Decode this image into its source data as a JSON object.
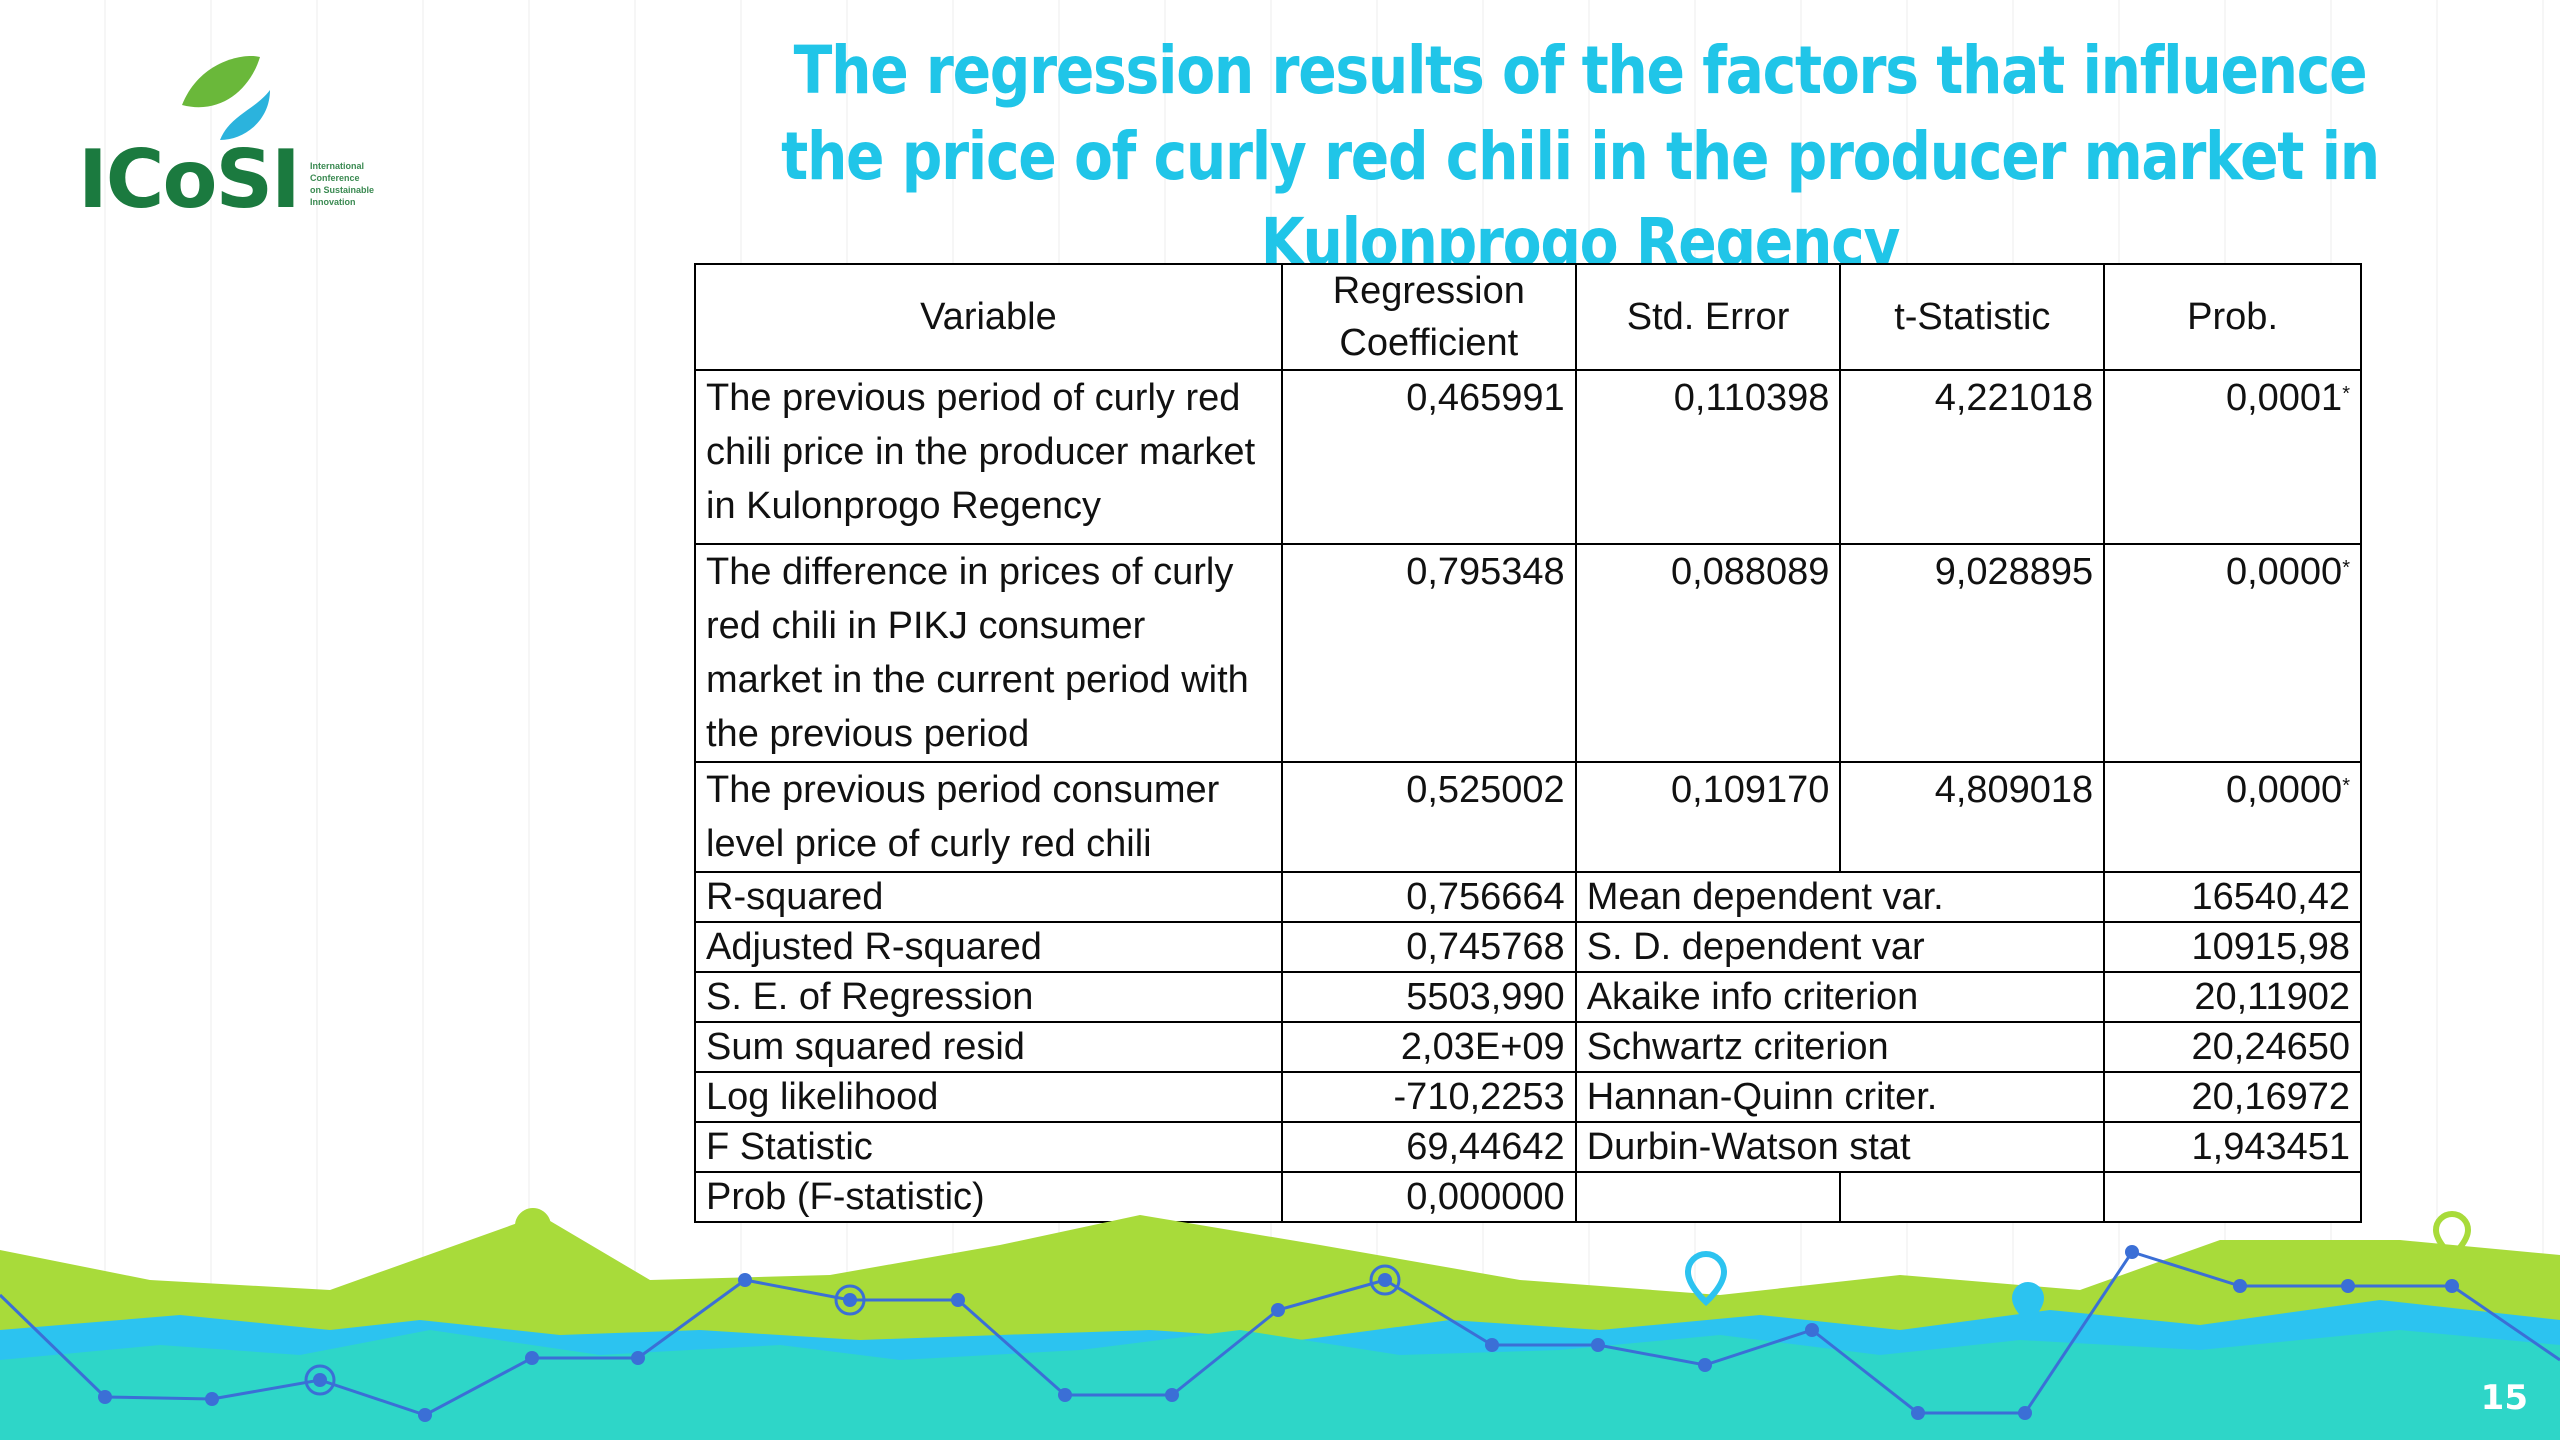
{
  "slide": {
    "title": "The regression results of the factors that influence the price of curly red chili in the producer market in Kulonprogo Regency",
    "page_number": "15"
  },
  "logo": {
    "wordmark": "ICoSI",
    "tagline_lines": [
      "International",
      "Conference",
      "on Sustainable",
      "Innovation"
    ],
    "leaf_color": "#6ab83a",
    "drop_color": "#2bb3dd",
    "text_color": "#1b7a3f"
  },
  "colors": {
    "title": "#20c5e8",
    "wave_green": "#a8db3a",
    "wave_teal": "#2ed6c8",
    "wave_blue": "#2cc3f0",
    "line_blue": "#3b6fd6"
  },
  "table": {
    "headers": [
      "Variable",
      "Regression Coefficient",
      "Std. Error",
      "t-Statistic",
      "Prob."
    ],
    "variables": [
      {
        "name": "The previous period of curly red chili price in the producer market in Kulonprogo Regency",
        "coef": "0,465991",
        "se": "0,110398",
        "t": "4,221018",
        "prob": "0,0001",
        "mark": "*"
      },
      {
        "name": "The difference in prices of curly red chili in PIKJ consumer market in the current period with the previous period",
        "coef": "0,795348",
        "se": "0,088089",
        "t": "9,028895",
        "prob": "0,0000",
        "mark": "*"
      },
      {
        "name": "The previous period consumer level price of curly red chili",
        "coef": "0,525002",
        "se": "0,109170",
        "t": "4,809018",
        "prob": "0,0000",
        "mark": "*"
      }
    ],
    "stats": [
      {
        "label": "R-squared",
        "value": "0,756664",
        "label2": "Mean dependent var.",
        "value2": "16540,42"
      },
      {
        "label": "Adjusted R-squared",
        "value": "0,745768",
        "label2": "S. D. dependent var",
        "value2": "10915,98"
      },
      {
        "label": "S. E. of Regression",
        "value": "5503,990",
        "label2": "Akaike info criterion",
        "value2": "20,11902"
      },
      {
        "label": "Sum squared resid",
        "value": "2,03E+09",
        "label2": "Schwartz criterion",
        "value2": "20,24650"
      },
      {
        "label": "Log likelihood",
        "value": "-710,2253",
        "label2": "Hannan-Quinn criter.",
        "value2": "20,16972"
      },
      {
        "label": "F Statistic",
        "value": "69,44642",
        "label2": "Durbin-Watson stat",
        "value2": "1,943451"
      },
      {
        "label": "Prob (F-statistic)",
        "value": "0,000000",
        "label2": "",
        "value2": ""
      }
    ]
  }
}
